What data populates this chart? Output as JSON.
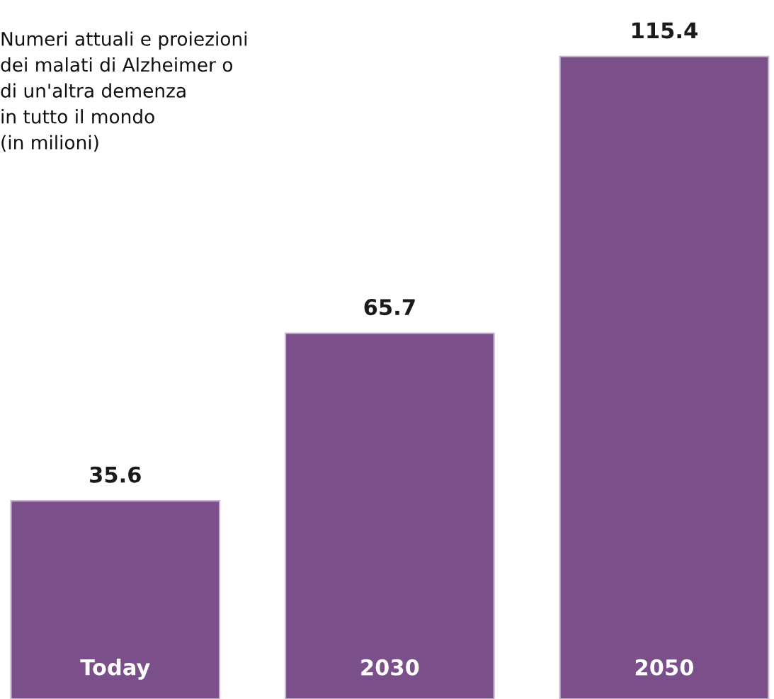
{
  "chart_data": {
    "type": "bar",
    "title": "Numeri attuali e proiezioni\ndei malati di Alzheimer o\ndi un'altra demenza\nin tutto il mondo\n(in milioni)",
    "categories": [
      "Today",
      "2030",
      "2050"
    ],
    "values": [
      35.6,
      65.7,
      115.4
    ],
    "color": "#7a4f8a",
    "data_labels": true
  }
}
